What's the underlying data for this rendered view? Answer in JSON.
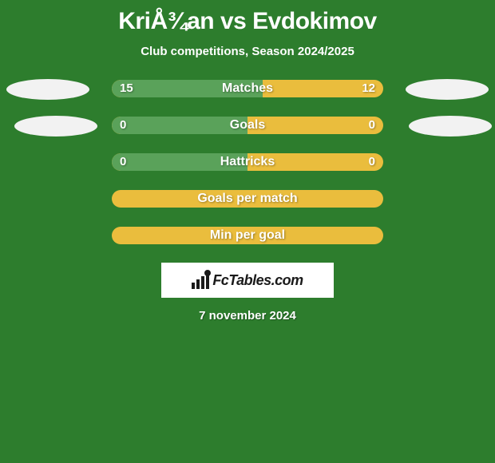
{
  "title": "KriÅ¾an vs Evdokimov",
  "subtitle": "Club competitions, Season 2024/2025",
  "date": "7 november 2024",
  "logo_text": "FcTables.com",
  "bar_colors": {
    "left": "#5aa25a",
    "right": "#eabd3d",
    "background": "#2d7d2d",
    "ellipse": "#f2f2f2",
    "text": "#ffffff"
  },
  "rows": [
    {
      "label": "Matches",
      "left_val": "15",
      "right_val": "12",
      "left_pct": 55.6,
      "show_ellipses": true,
      "ellipse_indent": false
    },
    {
      "label": "Goals",
      "left_val": "0",
      "right_val": "0",
      "left_pct": 50.0,
      "show_ellipses": true,
      "ellipse_indent": true
    },
    {
      "label": "Hattricks",
      "left_val": "0",
      "right_val": "0",
      "left_pct": 50.0,
      "show_ellipses": false
    },
    {
      "label": "Goals per match",
      "left_val": "",
      "right_val": "",
      "left_pct": 0.0,
      "show_ellipses": false
    },
    {
      "label": "Min per goal",
      "left_val": "",
      "right_val": "",
      "left_pct": 0.0,
      "show_ellipses": false
    }
  ]
}
